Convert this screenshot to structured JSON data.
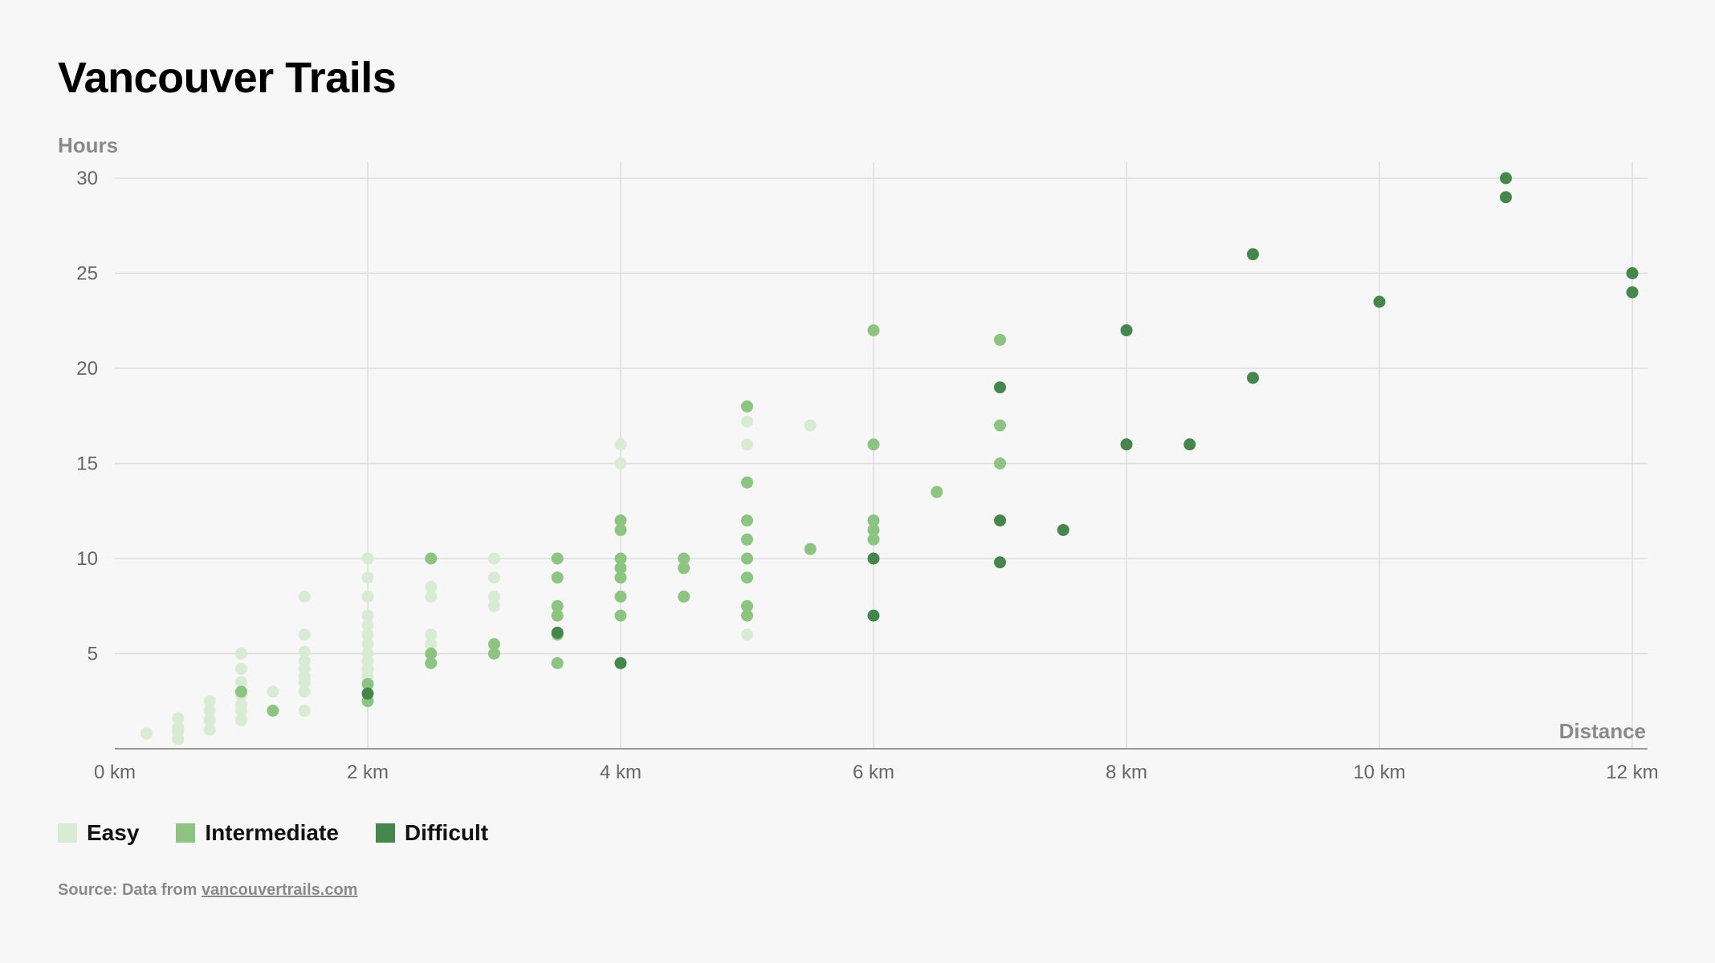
{
  "title": "Vancouver Trails",
  "source": {
    "prefix": "Source: Data from ",
    "link_text": "vancouvertrails.com"
  },
  "colors": {
    "background": "#f7f7f7",
    "grid": "#dddddd",
    "easy": "#d8ecd3",
    "intermediate": "#8cc57f",
    "difficult": "#44874a"
  },
  "legend": [
    {
      "label": "Easy",
      "color": "#d8ecd3"
    },
    {
      "label": "Intermediate",
      "color": "#8cc57f"
    },
    {
      "label": "Difficult",
      "color": "#44874a"
    }
  ],
  "chart_data": {
    "type": "scatter",
    "title": "Vancouver Trails",
    "xlabel": "Distance",
    "ylabel": "Hours",
    "xlim": [
      0,
      12.1
    ],
    "ylim": [
      0,
      30.9
    ],
    "x_ticks": [
      0,
      2,
      4,
      6,
      8,
      10,
      12
    ],
    "x_tick_labels": [
      "0 km",
      "2 km",
      "4 km",
      "6 km",
      "8 km",
      "10 km",
      "12 km"
    ],
    "y_ticks": [
      5,
      10,
      15,
      20,
      25,
      30
    ],
    "y_tick_labels": [
      "5",
      "10",
      "15",
      "20",
      "25",
      "30"
    ],
    "grid": true,
    "legend_position": "bottom-left",
    "series": [
      {
        "name": "Easy",
        "color": "#d8ecd3",
        "points": [
          [
            0.25,
            0.8
          ],
          [
            0.5,
            0.5
          ],
          [
            0.5,
            0.9
          ],
          [
            0.5,
            1.1
          ],
          [
            0.5,
            1.6
          ],
          [
            0.75,
            1.0
          ],
          [
            0.75,
            1.5
          ],
          [
            0.75,
            2.0
          ],
          [
            0.75,
            2.5
          ],
          [
            1,
            1.5
          ],
          [
            1,
            2.0
          ],
          [
            1,
            2.3
          ],
          [
            1,
            2.8
          ],
          [
            1,
            3.5
          ],
          [
            1,
            4.2
          ],
          [
            1,
            5.0
          ],
          [
            1.25,
            3.0
          ],
          [
            1.5,
            2.0
          ],
          [
            1.5,
            3.0
          ],
          [
            1.5,
            3.5
          ],
          [
            1.5,
            3.8
          ],
          [
            1.5,
            4.2
          ],
          [
            1.5,
            4.6
          ],
          [
            1.5,
            5.1
          ],
          [
            1.5,
            6.0
          ],
          [
            1.5,
            8.0
          ],
          [
            2,
            3.8
          ],
          [
            2,
            4.2
          ],
          [
            2,
            4.6
          ],
          [
            2,
            5.0
          ],
          [
            2,
            5.5
          ],
          [
            2,
            6.0
          ],
          [
            2,
            6.5
          ],
          [
            2,
            7.0
          ],
          [
            2,
            8.0
          ],
          [
            2,
            9.0
          ],
          [
            2,
            10.0
          ],
          [
            2.5,
            5.5
          ],
          [
            2.5,
            6.0
          ],
          [
            2.5,
            8.0
          ],
          [
            2.5,
            8.5
          ],
          [
            3,
            7.5
          ],
          [
            3,
            8.0
          ],
          [
            3,
            9.0
          ],
          [
            3,
            10.0
          ],
          [
            4,
            15.0
          ],
          [
            4,
            16.0
          ],
          [
            5,
            6.0
          ],
          [
            5,
            16.0
          ],
          [
            5,
            17.2
          ],
          [
            5.5,
            17.0
          ]
        ]
      },
      {
        "name": "Intermediate",
        "color": "#8cc57f",
        "points": [
          [
            1,
            3.0
          ],
          [
            1.25,
            2.0
          ],
          [
            2,
            2.5
          ],
          [
            2,
            3.4
          ],
          [
            2.5,
            4.5
          ],
          [
            2.5,
            5.0
          ],
          [
            2.5,
            10.0
          ],
          [
            3,
            5.0
          ],
          [
            3,
            5.5
          ],
          [
            3.5,
            4.5
          ],
          [
            3.5,
            6.0
          ],
          [
            3.5,
            7.0
          ],
          [
            3.5,
            7.5
          ],
          [
            3.5,
            9.0
          ],
          [
            3.5,
            10.0
          ],
          [
            4,
            7.0
          ],
          [
            4,
            8.0
          ],
          [
            4,
            9.0
          ],
          [
            4,
            9.5
          ],
          [
            4,
            10.0
          ],
          [
            4,
            11.5
          ],
          [
            4,
            12.0
          ],
          [
            4.5,
            8.0
          ],
          [
            4.5,
            9.5
          ],
          [
            4.5,
            10.0
          ],
          [
            5,
            7.0
          ],
          [
            5,
            7.5
          ],
          [
            5,
            9.0
          ],
          [
            5,
            10.0
          ],
          [
            5,
            11.0
          ],
          [
            5,
            12.0
          ],
          [
            5,
            14.0
          ],
          [
            5,
            18.0
          ],
          [
            5.5,
            10.5
          ],
          [
            6,
            11.0
          ],
          [
            6,
            11.5
          ],
          [
            6,
            12.0
          ],
          [
            6,
            16.0
          ],
          [
            6,
            22.0
          ],
          [
            6.5,
            13.5
          ],
          [
            7,
            15.0
          ],
          [
            7,
            17.0
          ],
          [
            7,
            21.5
          ]
        ]
      },
      {
        "name": "Difficult",
        "color": "#44874a",
        "points": [
          [
            2,
            2.9
          ],
          [
            3.5,
            6.1
          ],
          [
            4,
            4.5
          ],
          [
            6,
            7.0
          ],
          [
            6,
            10.0
          ],
          [
            7,
            9.8
          ],
          [
            7,
            12.0
          ],
          [
            7,
            19.0
          ],
          [
            7.5,
            11.5
          ],
          [
            8,
            16.0
          ],
          [
            8,
            22.0
          ],
          [
            8.5,
            16.0
          ],
          [
            9,
            19.5
          ],
          [
            9,
            26.0
          ],
          [
            10,
            23.5
          ],
          [
            11,
            29.0
          ],
          [
            11,
            30.0
          ],
          [
            12,
            24.0
          ],
          [
            12,
            25.0
          ]
        ]
      }
    ]
  }
}
